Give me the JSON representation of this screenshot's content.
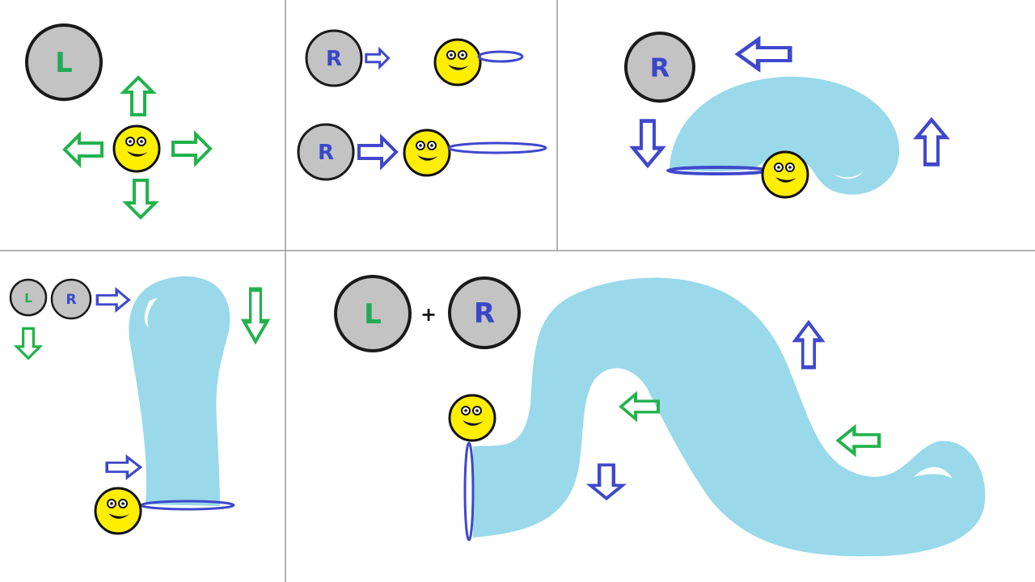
{
  "colors": {
    "background": "#ffffff",
    "divider": "#9a9a9a",
    "button_fill": "#c3c3c3",
    "button_stroke": "#1a1a1a",
    "label_l": "#22aa55",
    "label_r": "#3a48c8",
    "arrow_green": "#22b24c",
    "arrow_blue": "#3f48cc",
    "tube": "#99d9ea",
    "smiley": "#ffee00",
    "ring": "#3f48cc"
  },
  "icons": {
    "button": "circle-button",
    "character": "smiley-face",
    "arrow": "outline-arrow",
    "trail": "light-blue-trail"
  },
  "buttons": {
    "left": "L",
    "right": "R"
  },
  "combo": {
    "plus": "+"
  }
}
